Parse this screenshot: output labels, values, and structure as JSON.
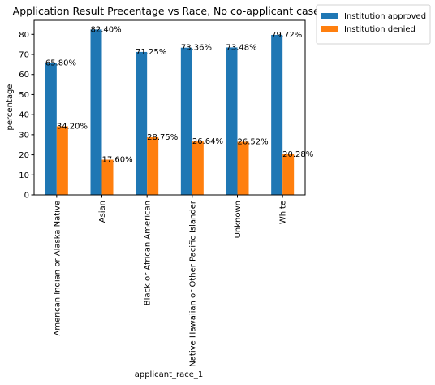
{
  "chart_data": {
    "type": "bar",
    "title": "Application Result Precentage vs Race, No co-applicant cases",
    "xlabel": "applicant_race_1",
    "ylabel": "percentage",
    "ylim": [
      0,
      87
    ],
    "yticks": [
      0,
      10,
      20,
      30,
      40,
      50,
      60,
      70,
      80
    ],
    "grid": false,
    "legend_position": "outside-top-right",
    "categories": [
      "American Indian or Alaska Native",
      "Asian",
      "Black or African American",
      "Native Hawaiian or Other Pacific Islander",
      "Unknown",
      "White"
    ],
    "series": [
      {
        "name": "Institution approved",
        "color": "#1f77b4",
        "values": [
          65.8,
          82.4,
          71.25,
          73.36,
          73.48,
          79.72
        ],
        "labels": [
          "65.80%",
          "82.40%",
          "71.25%",
          "73.36%",
          "73.48%",
          "79.72%"
        ]
      },
      {
        "name": "Institution denied",
        "color": "#ff7f0e",
        "values": [
          34.2,
          17.6,
          28.75,
          26.64,
          26.52,
          20.28
        ],
        "labels": [
          "34.20%",
          "17.60%",
          "28.75%",
          "26.64%",
          "26.52%",
          "20.28%"
        ]
      }
    ]
  }
}
